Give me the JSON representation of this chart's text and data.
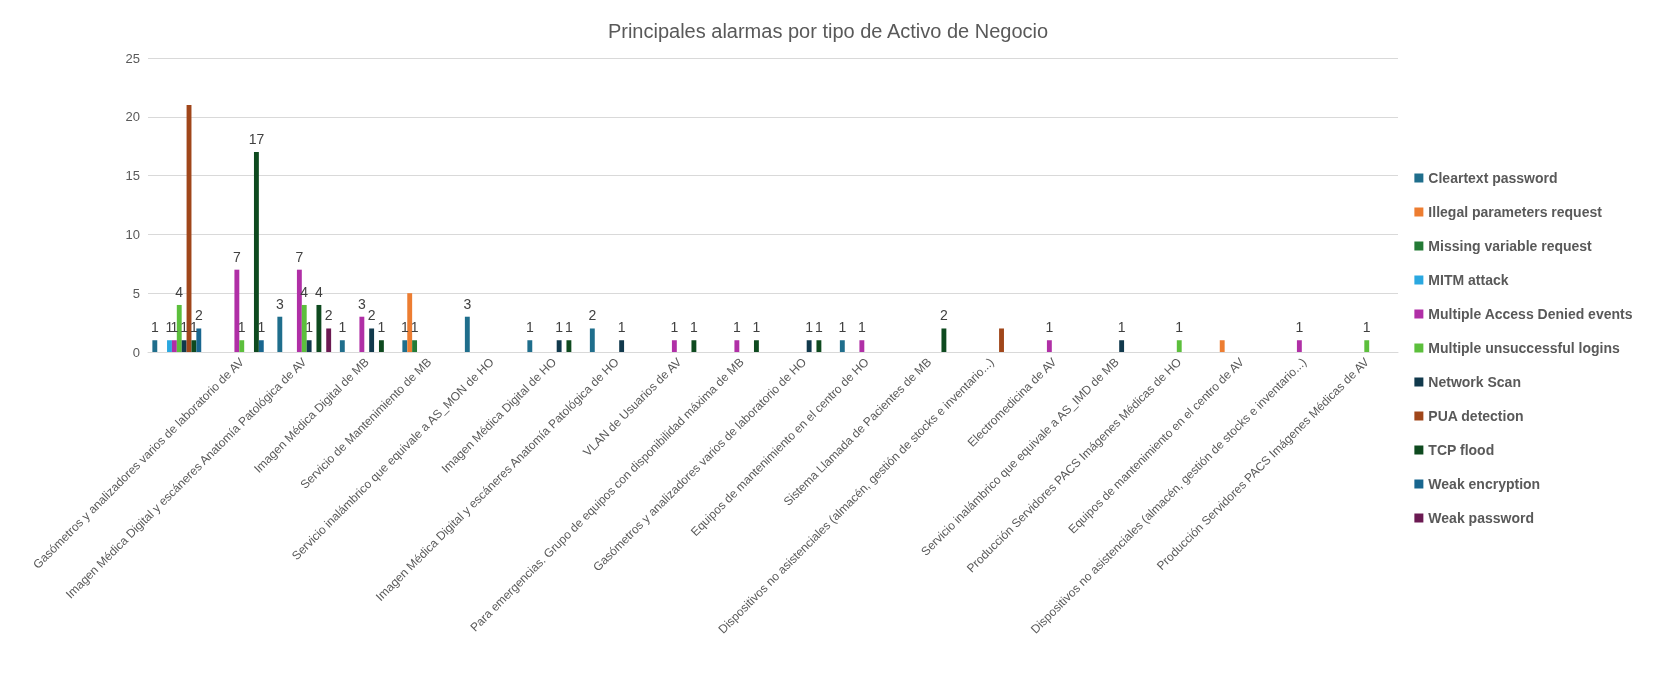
{
  "chart_data": {
    "type": "bar",
    "title": "Principales alarmas por tipo de Activo de Negocio",
    "categories": [
      null,
      "Gasómetros y analizadores varios de laboratorio de AV",
      "Imagen Médica Digital y escáneres Anatomía Patológica de AV",
      "Imagen Médica Digital de MB",
      "Servicio de Mantenimiento de MB",
      "Servicio inalámbrico que equivale a AS_MON de HO",
      "Imagen Médica Digital de HO",
      "Imagen Médica Digital y escáneres Anatomía Patológica de HO",
      "VLAN de Usuarios de AV",
      "Para emergencias. Grupo de equipos con disponibilidad máxima de MB",
      "Gasómetros y analizadores varios de laboratorio de HO",
      "Equipos de mantenimiento en el centro de HO",
      "Sistema Llamada de Pacientes de MB",
      "Dispositivos no asistenciales (almacén, gestión de stocks e inventario...)",
      "Electromedicina de AV",
      "Servicio inalámbrico que equivale a AS_IMD de MB",
      "Producción Servidores PACS Imágenes Médicas de HO",
      "Equipos de mantenimiento en el centro de AV",
      "Dispositivos no asistenciales (almacén, gestión de stocks e inventario...)",
      "Producción Servidores PACS Imágenes Médicas de AV"
    ],
    "series": [
      {
        "name": "Cleartext password",
        "color": "#1f6e8c",
        "values": [
          1,
          null,
          3,
          1,
          1,
          3,
          1,
          2,
          null,
          null,
          null,
          1,
          null,
          null,
          null,
          null,
          null,
          null,
          null,
          null
        ],
        "value_labels": [
          "1",
          null,
          "3",
          "1",
          "1",
          "3",
          "1",
          "2",
          null,
          null,
          null,
          "1",
          null,
          null,
          null,
          null,
          null,
          null,
          null,
          null
        ]
      },
      {
        "name": "Illegal parameters request",
        "color": "#ed7d31",
        "values": [
          null,
          null,
          null,
          null,
          5,
          null,
          null,
          null,
          null,
          null,
          null,
          null,
          null,
          null,
          null,
          null,
          null,
          1,
          null,
          null
        ],
        "value_labels": [
          null,
          null,
          null,
          null,
          null,
          null,
          null,
          null,
          null,
          null,
          null,
          null,
          null,
          null,
          null,
          null,
          null,
          null,
          null,
          null
        ]
      },
      {
        "name": "Missing variable request",
        "color": "#237a35",
        "values": [
          null,
          null,
          null,
          null,
          1,
          null,
          null,
          null,
          null,
          null,
          null,
          null,
          null,
          null,
          null,
          null,
          null,
          null,
          null,
          null
        ],
        "value_labels": [
          null,
          null,
          null,
          null,
          "1",
          null,
          null,
          null,
          null,
          null,
          null,
          null,
          null,
          null,
          null,
          null,
          null,
          null,
          null,
          null
        ]
      },
      {
        "name": "MITM attack",
        "color": "#2aa8e0",
        "values": [
          1,
          null,
          null,
          null,
          null,
          null,
          null,
          null,
          null,
          null,
          null,
          null,
          null,
          null,
          null,
          null,
          null,
          null,
          null,
          null
        ],
        "value_labels": [
          "1",
          null,
          null,
          null,
          null,
          null,
          null,
          null,
          null,
          null,
          null,
          null,
          null,
          null,
          null,
          null,
          null,
          null,
          null,
          null
        ]
      },
      {
        "name": "Multiple Access Denied events",
        "color": "#b02fa6",
        "values": [
          1,
          7,
          7,
          3,
          null,
          null,
          null,
          null,
          1,
          1,
          null,
          1,
          null,
          null,
          1,
          null,
          null,
          null,
          1,
          null
        ],
        "value_labels": [
          "1",
          "7",
          "7",
          "3",
          null,
          null,
          null,
          null,
          "1",
          "1",
          null,
          "1",
          null,
          null,
          "1",
          null,
          null,
          null,
          "1",
          null
        ]
      },
      {
        "name": "Multiple unsuccessful logins",
        "color": "#5cbf3c",
        "values": [
          4,
          1,
          4,
          null,
          null,
          null,
          null,
          null,
          null,
          null,
          null,
          null,
          null,
          null,
          null,
          null,
          1,
          null,
          null,
          1
        ],
        "value_labels": [
          "4",
          "1",
          "4",
          null,
          null,
          null,
          null,
          null,
          null,
          null,
          null,
          null,
          null,
          null,
          null,
          null,
          "1",
          null,
          null,
          "1"
        ]
      },
      {
        "name": "Network Scan",
        "color": "#11394c",
        "values": [
          1,
          null,
          1,
          2,
          null,
          null,
          1,
          1,
          null,
          null,
          1,
          null,
          null,
          null,
          null,
          1,
          null,
          null,
          null,
          null
        ],
        "value_labels": [
          "1",
          null,
          "1",
          "2",
          null,
          null,
          "1",
          "1",
          null,
          null,
          "1",
          null,
          null,
          null,
          null,
          "1",
          null,
          null,
          null,
          null
        ]
      },
      {
        "name": "PUA detection",
        "color": "#a0461a",
        "values": [
          21,
          null,
          null,
          null,
          null,
          null,
          null,
          null,
          null,
          null,
          null,
          null,
          null,
          2,
          null,
          null,
          null,
          null,
          null,
          null
        ],
        "value_labels": [
          null,
          null,
          null,
          null,
          null,
          null,
          null,
          null,
          null,
          null,
          null,
          null,
          null,
          null,
          null,
          null,
          null,
          null,
          null,
          null
        ]
      },
      {
        "name": "TCP flood",
        "color": "#0e4a1f",
        "values": [
          1,
          17,
          4,
          1,
          null,
          null,
          1,
          null,
          1,
          1,
          1,
          null,
          2,
          null,
          null,
          null,
          null,
          null,
          null,
          null
        ],
        "value_labels": [
          "1",
          "17",
          "4",
          "1",
          null,
          null,
          "1",
          null,
          "1",
          "1",
          "1",
          null,
          "2",
          null,
          null,
          null,
          null,
          null,
          null,
          null
        ]
      },
      {
        "name": "Weak encryption",
        "color": "#18668f",
        "values": [
          2,
          1,
          null,
          null,
          null,
          null,
          null,
          null,
          null,
          null,
          null,
          null,
          null,
          null,
          null,
          null,
          null,
          null,
          null,
          null
        ],
        "value_labels": [
          "2",
          "1",
          null,
          null,
          null,
          null,
          null,
          null,
          null,
          null,
          null,
          null,
          null,
          null,
          null,
          null,
          null,
          null,
          null,
          null
        ]
      },
      {
        "name": "Weak password",
        "color": "#6b1a52",
        "values": [
          null,
          null,
          2,
          null,
          null,
          null,
          null,
          null,
          null,
          null,
          null,
          null,
          null,
          null,
          null,
          null,
          null,
          null,
          null,
          null
        ],
        "value_labels": [
          null,
          null,
          "2",
          null,
          null,
          null,
          null,
          null,
          null,
          null,
          null,
          null,
          null,
          null,
          null,
          null,
          null,
          null,
          null,
          null
        ]
      }
    ],
    "ylim": [
      0,
      25
    ],
    "yticks": [
      0,
      5,
      10,
      15,
      20,
      25
    ],
    "grid": "y",
    "legend": "right"
  }
}
